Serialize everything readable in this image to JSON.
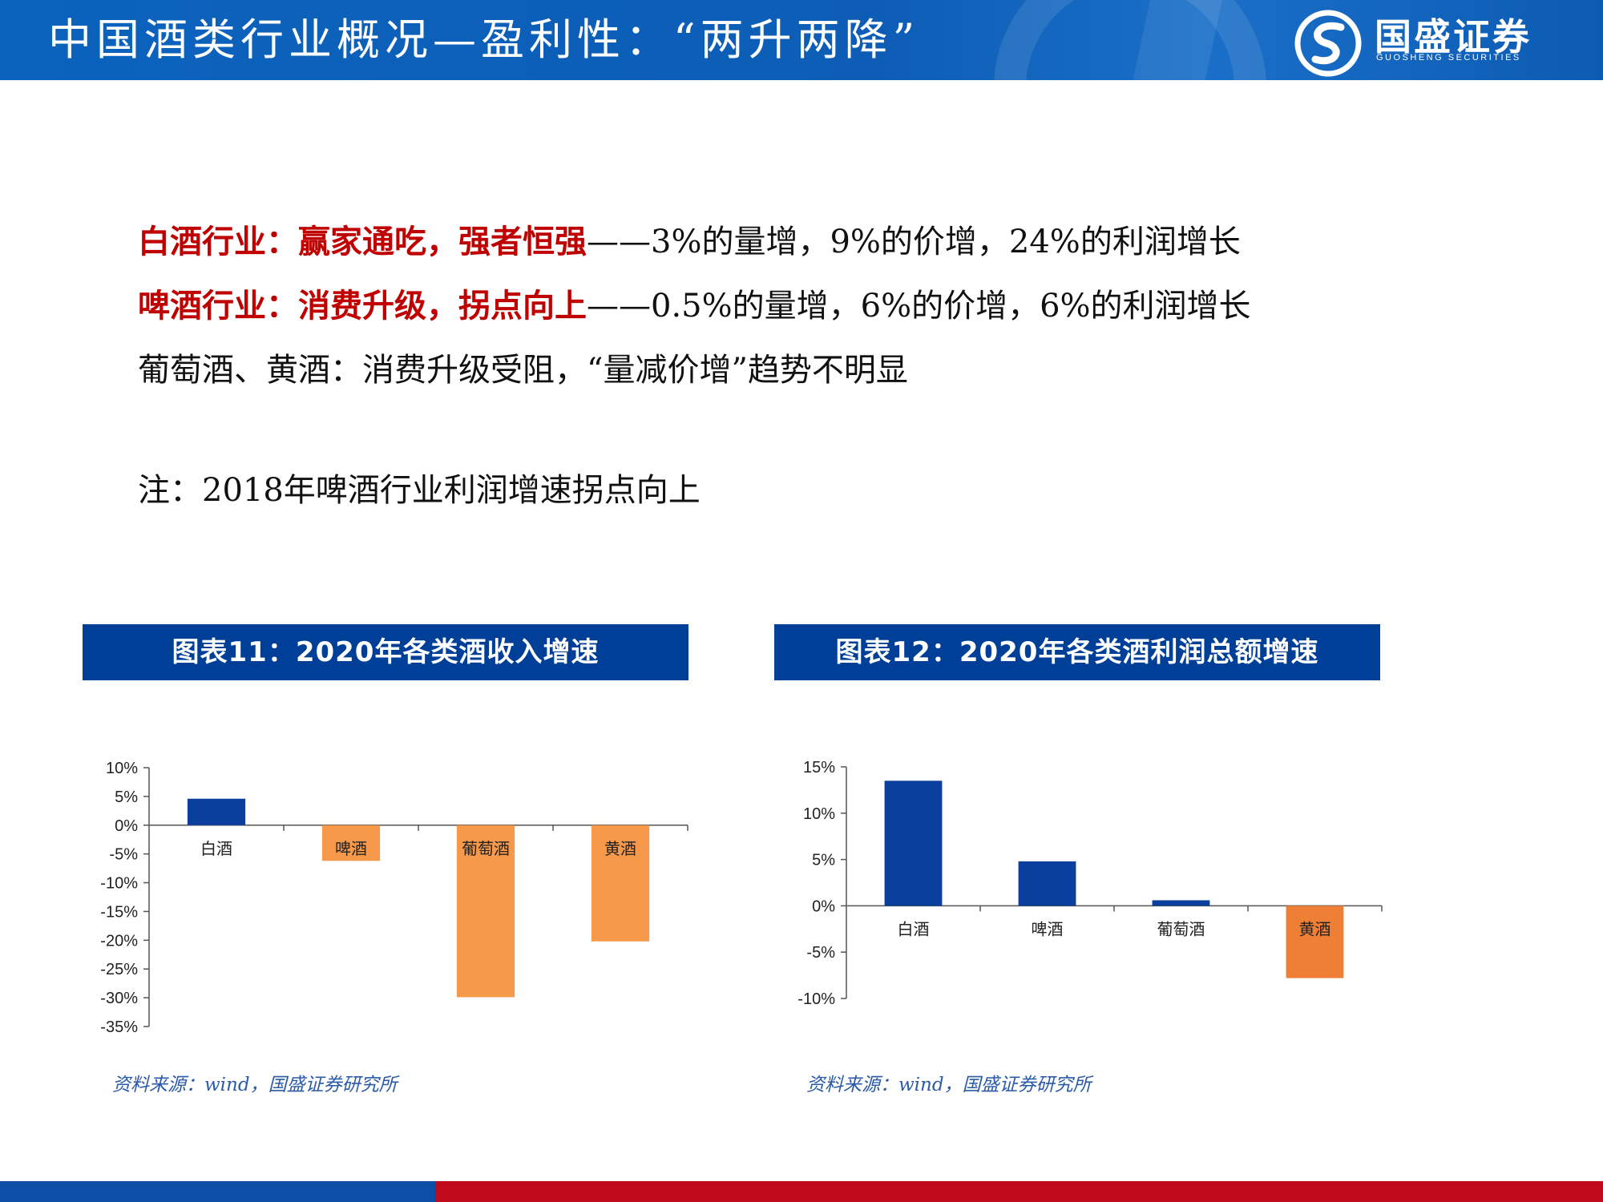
{
  "header": {
    "title": "中国酒类行业概况—盈利性：“两升两降”",
    "logo_cn": "国盛证券",
    "logo_en": "GUOSHENG SECURITIES"
  },
  "lines": [
    {
      "highlight": "白酒行业：赢家通吃，强者恒强",
      "rest": "——3%的量增，9%的价增，24%的利润增长"
    },
    {
      "highlight": "啤酒行业：消费升级，拐点向上",
      "rest": "——0.5%的量增，6%的价增，6%的利润增长"
    },
    {
      "highlight": "",
      "rest": "葡萄酒、黄酒：消费升级受阻，“量减价增”趋势不明显"
    }
  ],
  "note": "注：2018年啤酒行业利润增速拐点向上",
  "chart_titles": [
    "图表11：2020年各类酒收入增速",
    "图表12：2020年各类酒利润总额增速"
  ],
  "sources": [
    "资料来源：wind，国盛证券研究所",
    "资料来源：wind，国盛证券研究所"
  ],
  "colors": {
    "positive": "#0b3f9e",
    "negative": "#f7994a",
    "negative2": "#ee7f34",
    "header": "#0d5db6",
    "accent_red": "#c00000"
  },
  "chart_data": [
    {
      "type": "bar",
      "categories": [
        "白酒",
        "啤酒",
        "葡萄酒",
        "黄酒"
      ],
      "values": [
        4.6,
        -6.2,
        -29.9,
        -20.2
      ],
      "ylim": [
        -35,
        10
      ],
      "yticks": [
        10,
        5,
        0,
        -5,
        -10,
        -15,
        -20,
        -25,
        -30,
        -35
      ],
      "tick_labels": [
        "10%",
        "5%",
        "0%",
        "-5%",
        "-10%",
        "-15%",
        "-20%",
        "-25%",
        "-30%",
        "-35%"
      ],
      "bar_colors": [
        "#0b3f9e",
        "#f7994a",
        "#f7994a",
        "#f7994a"
      ]
    },
    {
      "type": "bar",
      "categories": [
        "白酒",
        "啤酒",
        "葡萄酒",
        "黄酒"
      ],
      "values": [
        13.5,
        4.8,
        0.6,
        -7.8
      ],
      "ylim": [
        -10,
        15
      ],
      "yticks": [
        15,
        10,
        5,
        0,
        -5,
        -10
      ],
      "tick_labels": [
        "15%",
        "10%",
        "5%",
        "0%",
        "-5%",
        "-10%"
      ],
      "bar_colors": [
        "#0b3f9e",
        "#0b3f9e",
        "#0b3f9e",
        "#ee7f34"
      ]
    }
  ]
}
